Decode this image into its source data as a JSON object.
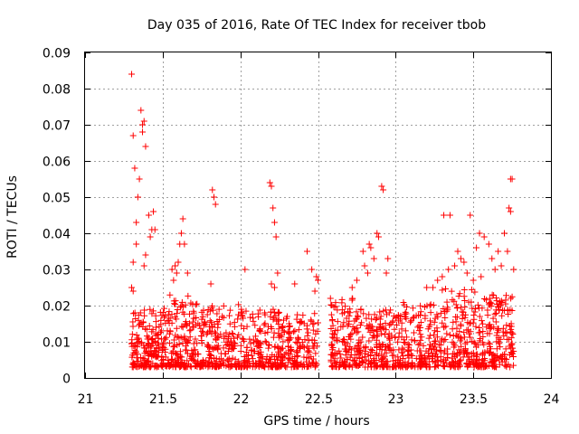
{
  "chart_data": {
    "type": "scatter",
    "title": "Day 035 of 2016, Rate Of TEC Index for receiver tbob",
    "xlabel": "GPS time / hours",
    "ylabel": "ROTI / TECUs",
    "xlim": [
      21,
      24
    ],
    "ylim": [
      0,
      0.09
    ],
    "x_ticks": [
      21,
      21.5,
      22,
      22.5,
      23,
      23.5,
      24
    ],
    "x_tick_labels": [
      "21",
      "21.5",
      "22",
      "22.5",
      "23",
      "23.5",
      "24"
    ],
    "y_ticks": [
      0,
      0.01,
      0.02,
      0.03,
      0.04,
      0.05,
      0.06,
      0.07,
      0.08,
      0.09
    ],
    "y_tick_labels": [
      "0",
      "0.01",
      "0.02",
      "0.03",
      "0.04",
      "0.05",
      "0.06",
      "0.07",
      "0.08",
      "0.09"
    ],
    "grid": true,
    "marker": "plus",
    "marker_color": "#ff0000",
    "series": [
      {
        "name": "ROTI",
        "points": [
          [
            21.3,
            0.084
          ],
          [
            21.31,
            0.067
          ],
          [
            21.32,
            0.058
          ],
          [
            21.35,
            0.055
          ],
          [
            21.36,
            0.074
          ],
          [
            21.37,
            0.07
          ],
          [
            21.37,
            0.068
          ],
          [
            21.38,
            0.071
          ],
          [
            21.39,
            0.064
          ],
          [
            21.34,
            0.05
          ],
          [
            21.33,
            0.043
          ],
          [
            21.33,
            0.037
          ],
          [
            21.41,
            0.045
          ],
          [
            21.44,
            0.046
          ],
          [
            21.43,
            0.041
          ],
          [
            21.45,
            0.041
          ],
          [
            21.42,
            0.039
          ],
          [
            21.39,
            0.034
          ],
          [
            21.38,
            0.031
          ],
          [
            21.31,
            0.032
          ],
          [
            21.3,
            0.025
          ],
          [
            21.31,
            0.024
          ],
          [
            21.63,
            0.044
          ],
          [
            21.62,
            0.04
          ],
          [
            21.61,
            0.037
          ],
          [
            21.64,
            0.037
          ],
          [
            21.6,
            0.032
          ],
          [
            21.58,
            0.031
          ],
          [
            21.59,
            0.029
          ],
          [
            21.57,
            0.027
          ],
          [
            21.56,
            0.03
          ],
          [
            21.66,
            0.029
          ],
          [
            21.82,
            0.052
          ],
          [
            21.83,
            0.05
          ],
          [
            21.84,
            0.048
          ],
          [
            21.81,
            0.026
          ],
          [
            22.19,
            0.054
          ],
          [
            22.2,
            0.053
          ],
          [
            22.21,
            0.047
          ],
          [
            22.22,
            0.043
          ],
          [
            22.23,
            0.039
          ],
          [
            22.2,
            0.026
          ],
          [
            22.22,
            0.025
          ],
          [
            22.24,
            0.029
          ],
          [
            22.03,
            0.03
          ],
          [
            22.35,
            0.026
          ],
          [
            22.43,
            0.035
          ],
          [
            22.46,
            0.03
          ],
          [
            22.49,
            0.028
          ],
          [
            22.5,
            0.027
          ],
          [
            22.48,
            0.024
          ],
          [
            22.83,
            0.037
          ],
          [
            22.84,
            0.036
          ],
          [
            22.88,
            0.04
          ],
          [
            22.89,
            0.039
          ],
          [
            22.91,
            0.053
          ],
          [
            22.92,
            0.052
          ],
          [
            22.95,
            0.033
          ],
          [
            22.86,
            0.033
          ],
          [
            22.79,
            0.035
          ],
          [
            22.8,
            0.031
          ],
          [
            22.82,
            0.029
          ],
          [
            22.94,
            0.029
          ],
          [
            22.75,
            0.027
          ],
          [
            22.72,
            0.025
          ],
          [
            23.31,
            0.045
          ],
          [
            23.35,
            0.045
          ],
          [
            23.48,
            0.045
          ],
          [
            23.54,
            0.04
          ],
          [
            23.52,
            0.036
          ],
          [
            23.57,
            0.039
          ],
          [
            23.6,
            0.037
          ],
          [
            23.62,
            0.033
          ],
          [
            23.64,
            0.03
          ],
          [
            23.66,
            0.035
          ],
          [
            23.7,
            0.04
          ],
          [
            23.73,
            0.047
          ],
          [
            23.74,
            0.046
          ],
          [
            23.74,
            0.055
          ],
          [
            23.75,
            0.055
          ],
          [
            23.72,
            0.035
          ],
          [
            23.76,
            0.03
          ],
          [
            23.68,
            0.031
          ],
          [
            23.4,
            0.035
          ],
          [
            23.42,
            0.033
          ],
          [
            23.38,
            0.031
          ],
          [
            23.44,
            0.032
          ],
          [
            23.46,
            0.029
          ],
          [
            23.34,
            0.03
          ],
          [
            23.3,
            0.028
          ],
          [
            23.27,
            0.027
          ],
          [
            23.24,
            0.025
          ],
          [
            23.2,
            0.025
          ],
          [
            23.5,
            0.027
          ],
          [
            23.55,
            0.028
          ]
        ]
      }
    ]
  }
}
